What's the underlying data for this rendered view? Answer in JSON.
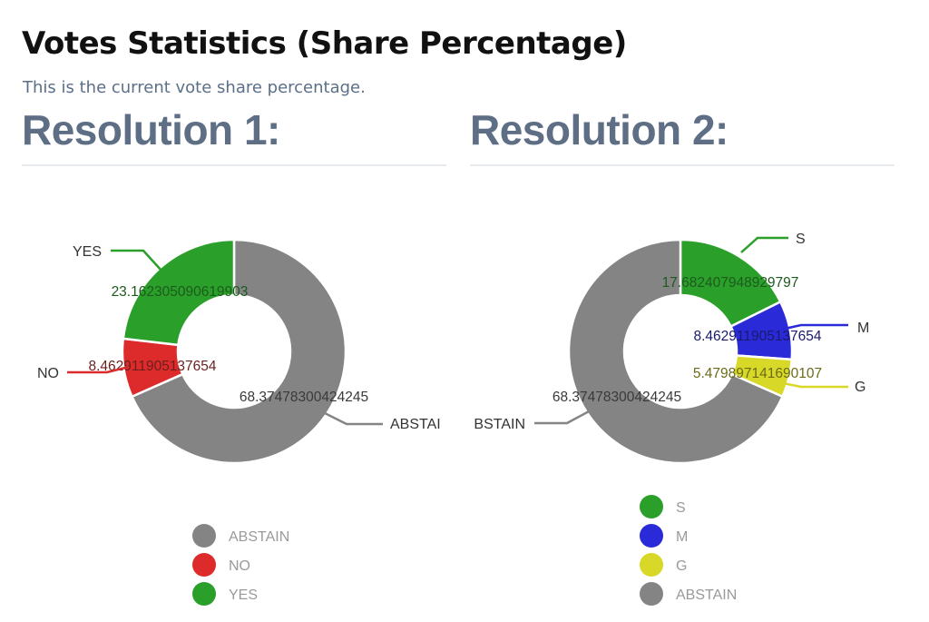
{
  "header": {
    "title": "Votes Statistics (Share Percentage)",
    "subtitle": "This is the current vote share percentage."
  },
  "sections": [
    {
      "heading": "Resolution 1:"
    },
    {
      "heading": "Resolution 2:"
    }
  ],
  "chart_data": [
    {
      "type": "pie",
      "variant": "donut",
      "slices": [
        {
          "label": "ABSTAIN",
          "value": 68.37478300424245,
          "value_label": "68.37478300424245",
          "outer_label": "ABSTAI",
          "color": "#848484",
          "text_color": "#3a3a3a"
        },
        {
          "label": "NO",
          "value": 8.462911905137654,
          "value_label": "8.462911905137654",
          "outer_label": "NO",
          "color": "#dd2a2a",
          "text_color": "#6b1f1f"
        },
        {
          "label": "YES",
          "value": 23.162305090619903,
          "value_label": "23.162305090619903",
          "outer_label": "YES",
          "color": "#2aa02a",
          "text_color": "#1d5a1d"
        }
      ],
      "legend": [
        "ABSTAIN",
        "NO",
        "YES"
      ],
      "legend_position": "bottom"
    },
    {
      "type": "pie",
      "variant": "donut",
      "slices": [
        {
          "label": "S",
          "value": 17.682407948929797,
          "value_label": "17.682407948929797",
          "outer_label": "S",
          "color": "#2aa02a",
          "text_color": "#1d5a1d"
        },
        {
          "label": "M",
          "value": 8.462911905137654,
          "value_label": "8.462911905137654",
          "outer_label": "M",
          "color": "#2a2ad9",
          "text_color": "#1a1a6b"
        },
        {
          "label": "G",
          "value": 5.479897141690107,
          "value_label": "5.479897141690107",
          "outer_label": "G",
          "color": "#d8d828",
          "text_color": "#6b6b1a"
        },
        {
          "label": "ABSTAIN",
          "value": 68.37478300424245,
          "value_label": "68.37478300424245",
          "outer_label": "BSTAIN",
          "color": "#848484",
          "text_color": "#3a3a3a"
        }
      ],
      "legend": [
        "S",
        "M",
        "G",
        "ABSTAIN"
      ],
      "legend_position": "bottom"
    }
  ]
}
